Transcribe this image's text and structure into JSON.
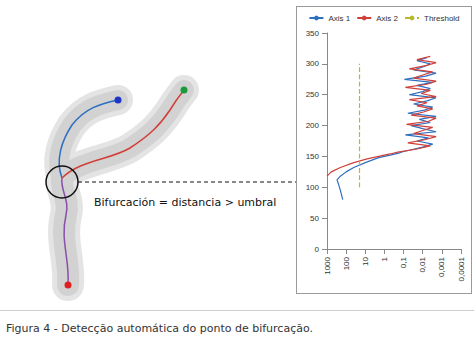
{
  "figure": {
    "caption": "Figura 4 - Detecção automática do ponto de bifurcação.",
    "annotation": "Bifurcación = distancia > umbral"
  },
  "chart_data": {
    "type": "line",
    "log": "x",
    "grid": false,
    "legend": "top",
    "xlim": [
      1000,
      0.0001
    ],
    "xticks": [
      1000,
      100,
      10,
      1,
      {
        "value": 0.1,
        "label": "0,1"
      },
      {
        "value": 0.01,
        "label": "0,01"
      },
      {
        "value": 0.001,
        "label": "0,001"
      },
      {
        "value": 0.0001,
        "label": "0,0001"
      }
    ],
    "ylim": [
      0,
      350
    ],
    "yticks": [
      0,
      50,
      100,
      150,
      200,
      250,
      300,
      350
    ],
    "series": [
      {
        "name": "Axis 1",
        "color": "#2e6fc0",
        "line_style": "solid",
        "y": [
          80,
          95,
          105,
          112,
          118,
          125,
          132,
          140,
          148,
          152,
          155,
          158,
          160,
          165,
          170,
          175,
          180,
          185,
          190,
          195,
          200,
          205,
          210,
          215,
          220,
          225,
          230,
          235,
          240,
          245,
          250,
          255,
          260,
          265,
          270,
          275,
          280,
          285,
          290,
          295,
          300,
          305,
          310
        ],
        "x": [
          150,
          200,
          250,
          300,
          200,
          100,
          40,
          10,
          2,
          0.5,
          0.2,
          0.1,
          0.05,
          0.01,
          0.003,
          0.02,
          0.005,
          0.08,
          0.002,
          0.01,
          0.04,
          0.004,
          0.015,
          0.002,
          0.06,
          0.008,
          0.003,
          0.03,
          0.006,
          0.002,
          0.05,
          0.01,
          0.004,
          0.02,
          0.003,
          0.09,
          0.007,
          0.002,
          0.03,
          0.01,
          0.004,
          0.02,
          0.006
        ]
      },
      {
        "name": "Axis 2",
        "color": "#d0403a",
        "line_style": "solid",
        "y": [
          118,
          125,
          132,
          140,
          146,
          150,
          154,
          157,
          162,
          167,
          172,
          177,
          182,
          187,
          192,
          197,
          202,
          207,
          212,
          217,
          222,
          227,
          232,
          237,
          242,
          247,
          252,
          257,
          262,
          267,
          272,
          277,
          282,
          287,
          292,
          297,
          302,
          307,
          312
        ],
        "x": [
          1000,
          600,
          200,
          40,
          8,
          2,
          0.5,
          0.2,
          0.02,
          0.004,
          0.06,
          0.008,
          0.002,
          0.03,
          0.01,
          0.003,
          0.07,
          0.005,
          0.002,
          0.04,
          0.009,
          0.003,
          0.02,
          0.006,
          0.05,
          0.002,
          0.012,
          0.004,
          0.08,
          0.006,
          0.002,
          0.03,
          0.01,
          0.003,
          0.05,
          0.007,
          0.002,
          0.02,
          0.004
        ]
      },
      {
        "name": "Threshold",
        "color": "#b8b82a",
        "line_style": "dashed",
        "y": [
          100,
          300
        ],
        "x": [
          20,
          20
        ]
      }
    ]
  }
}
